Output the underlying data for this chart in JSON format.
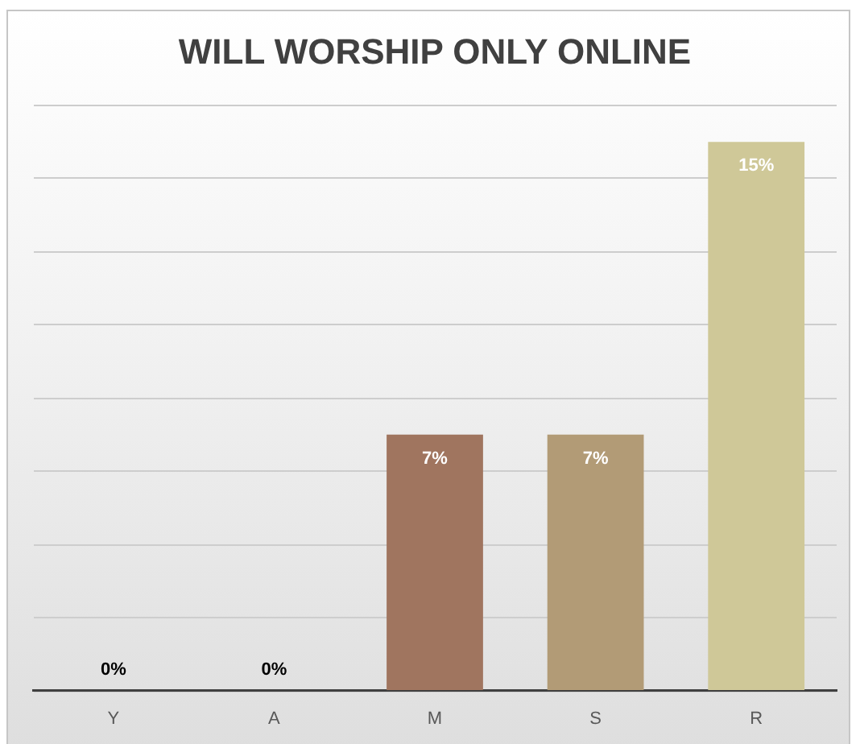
{
  "chart_data": {
    "type": "bar",
    "title": "WILL WORSHIP ONLY ONLINE",
    "categories": [
      "Y",
      "A",
      "M",
      "S",
      "R"
    ],
    "values": [
      0,
      0,
      7,
      7,
      15
    ],
    "colors": [
      "#a0755f",
      "#b29b76",
      "#a0755f",
      "#b29b76",
      "#cfc898"
    ],
    "value_labels": [
      "0%",
      "0%",
      "7%",
      "7%",
      "15%"
    ],
    "ylim": [
      0,
      16
    ],
    "yticks": [
      {
        "value": 0,
        "label": null
      },
      {
        "value": 2,
        "label": null
      },
      {
        "value": 4,
        "label": null
      },
      {
        "value": 6,
        "label": null
      },
      {
        "value": 8,
        "label": null
      },
      {
        "value": 10,
        "label": null
      },
      {
        "value": 12,
        "label": null
      },
      {
        "value": 14,
        "label": null
      },
      {
        "value": 16,
        "label": null
      }
    ],
    "grid": "y",
    "tick_labels": "x"
  }
}
